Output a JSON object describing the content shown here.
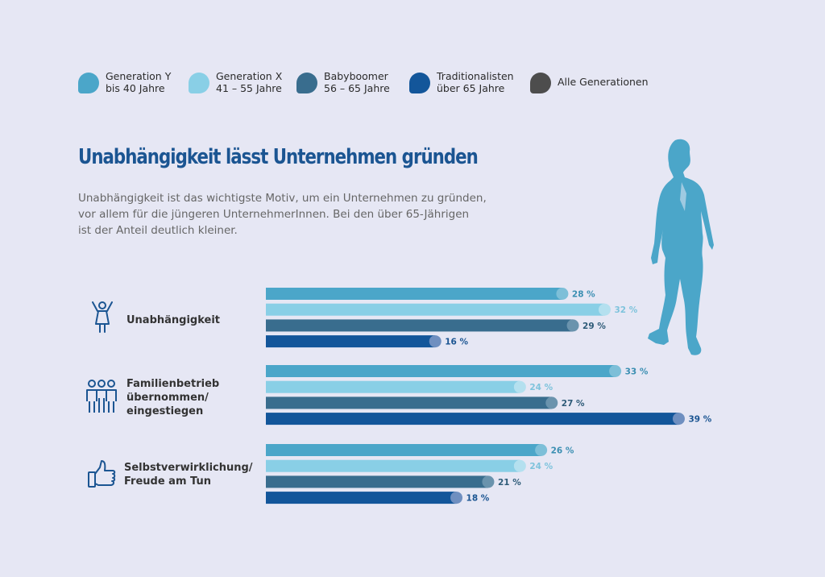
{
  "colors": {
    "background": "#e6e7f4",
    "generation_y": "#4ba6c9",
    "generation_x": "#89cfe6",
    "babyboomer": "#396d8e",
    "traditionalisten": "#13569a",
    "alle": "#4d4d4d",
    "title": "#1b5592"
  },
  "legend": [
    {
      "line1": "Generation Y",
      "line2": "bis 40 Jahre",
      "color": "#4ba6c9"
    },
    {
      "line1": "Generation X",
      "line2": "41 – 55 Jahre",
      "color": "#89cfe6"
    },
    {
      "line1": "Babyboomer",
      "line2": "56 – 65 Jahre",
      "color": "#396d8e"
    },
    {
      "line1": "Traditionalisten",
      "line2": "über 65 Jahre",
      "color": "#13569a"
    },
    {
      "line1": "Alle Generationen",
      "line2": "",
      "color": "#4d4d4d"
    }
  ],
  "title": "Unabhängigkeit lässt Unternehmen gründen",
  "intro": [
    "Unabhängigkeit ist das wichtigste Motiv, um ein Unternehmen zu gründen,",
    "vor allem für die jüngeren UnternehmerInnen. Bei den über 65-Jährigen",
    "ist der Anteil deutlich kleiner."
  ],
  "categories_text": [
    {
      "lines": [
        "Unabhängigkeit"
      ],
      "icon": "person-cheering-icon"
    },
    {
      "lines": [
        "Familienbetrieb",
        "übernommen/",
        "eingestiegen"
      ],
      "icon": "family-icon"
    },
    {
      "lines": [
        "Selbstverwirklichung/",
        "Freude am Tun"
      ],
      "icon": "thumbs-up-icon"
    }
  ],
  "chart_data": {
    "type": "bar",
    "orientation": "horizontal",
    "unit": "%",
    "categories": [
      "Unabhängigkeit",
      "Familienbetrieb übernommen/ eingestiegen",
      "Selbstverwirklichung/ Freude am Tun"
    ],
    "series": [
      {
        "name": "Generation Y bis 40 Jahre",
        "values": [
          28,
          33,
          26
        ]
      },
      {
        "name": "Generation X 41 – 55 Jahre",
        "values": [
          32,
          24,
          24
        ]
      },
      {
        "name": "Babyboomer 56 – 65 Jahre",
        "values": [
          29,
          27,
          21
        ]
      },
      {
        "name": "Traditionalisten über 65 Jahre",
        "values": [
          16,
          39,
          18
        ]
      }
    ],
    "value_labels": [
      [
        "28 %",
        "33 %",
        "26 %"
      ],
      [
        "32 %",
        "24 %",
        "24 %"
      ],
      [
        "29 %",
        "27 %",
        "21 %"
      ],
      [
        "16 %",
        "39 %",
        "18 %"
      ]
    ],
    "xlim": [
      0,
      39
    ],
    "grid": false,
    "legend_position": "top"
  }
}
